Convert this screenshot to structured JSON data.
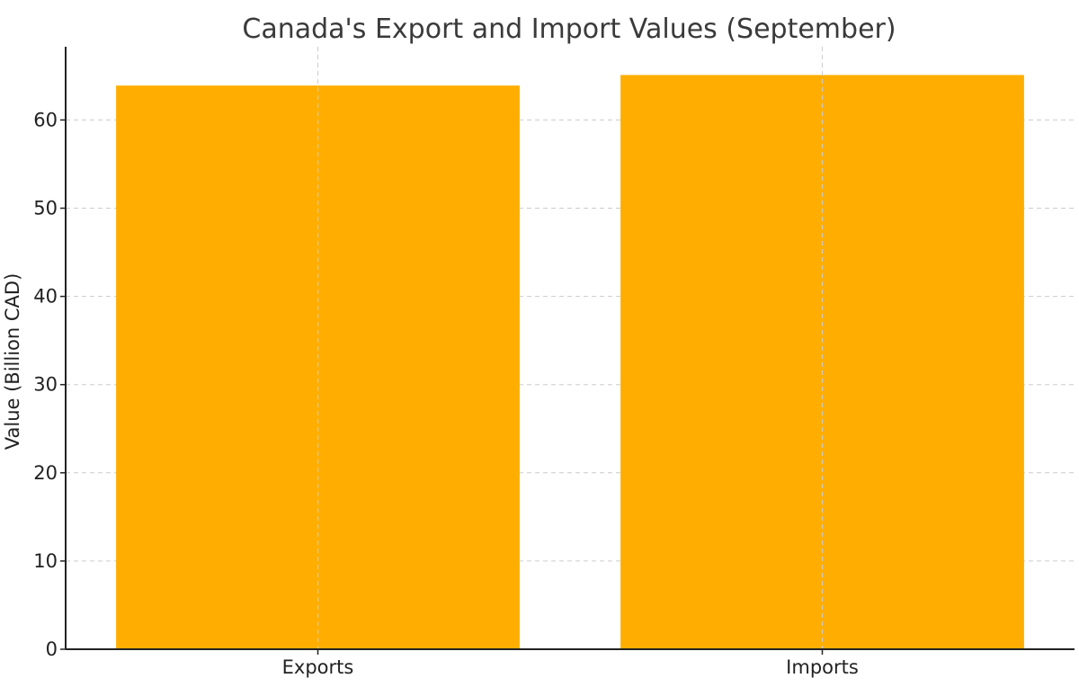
{
  "chart_data": {
    "type": "bar",
    "title": "Canada's Export and Import Values (September)",
    "xlabel": "",
    "ylabel": "Value (Billion CAD)",
    "categories": [
      "Exports",
      "Imports"
    ],
    "values": [
      63.9,
      65.1
    ],
    "ylim": [
      0,
      68.3
    ],
    "yticks": [
      0,
      10,
      20,
      30,
      40,
      50,
      60
    ],
    "grid": true,
    "bar_color": "#FFAE00"
  }
}
